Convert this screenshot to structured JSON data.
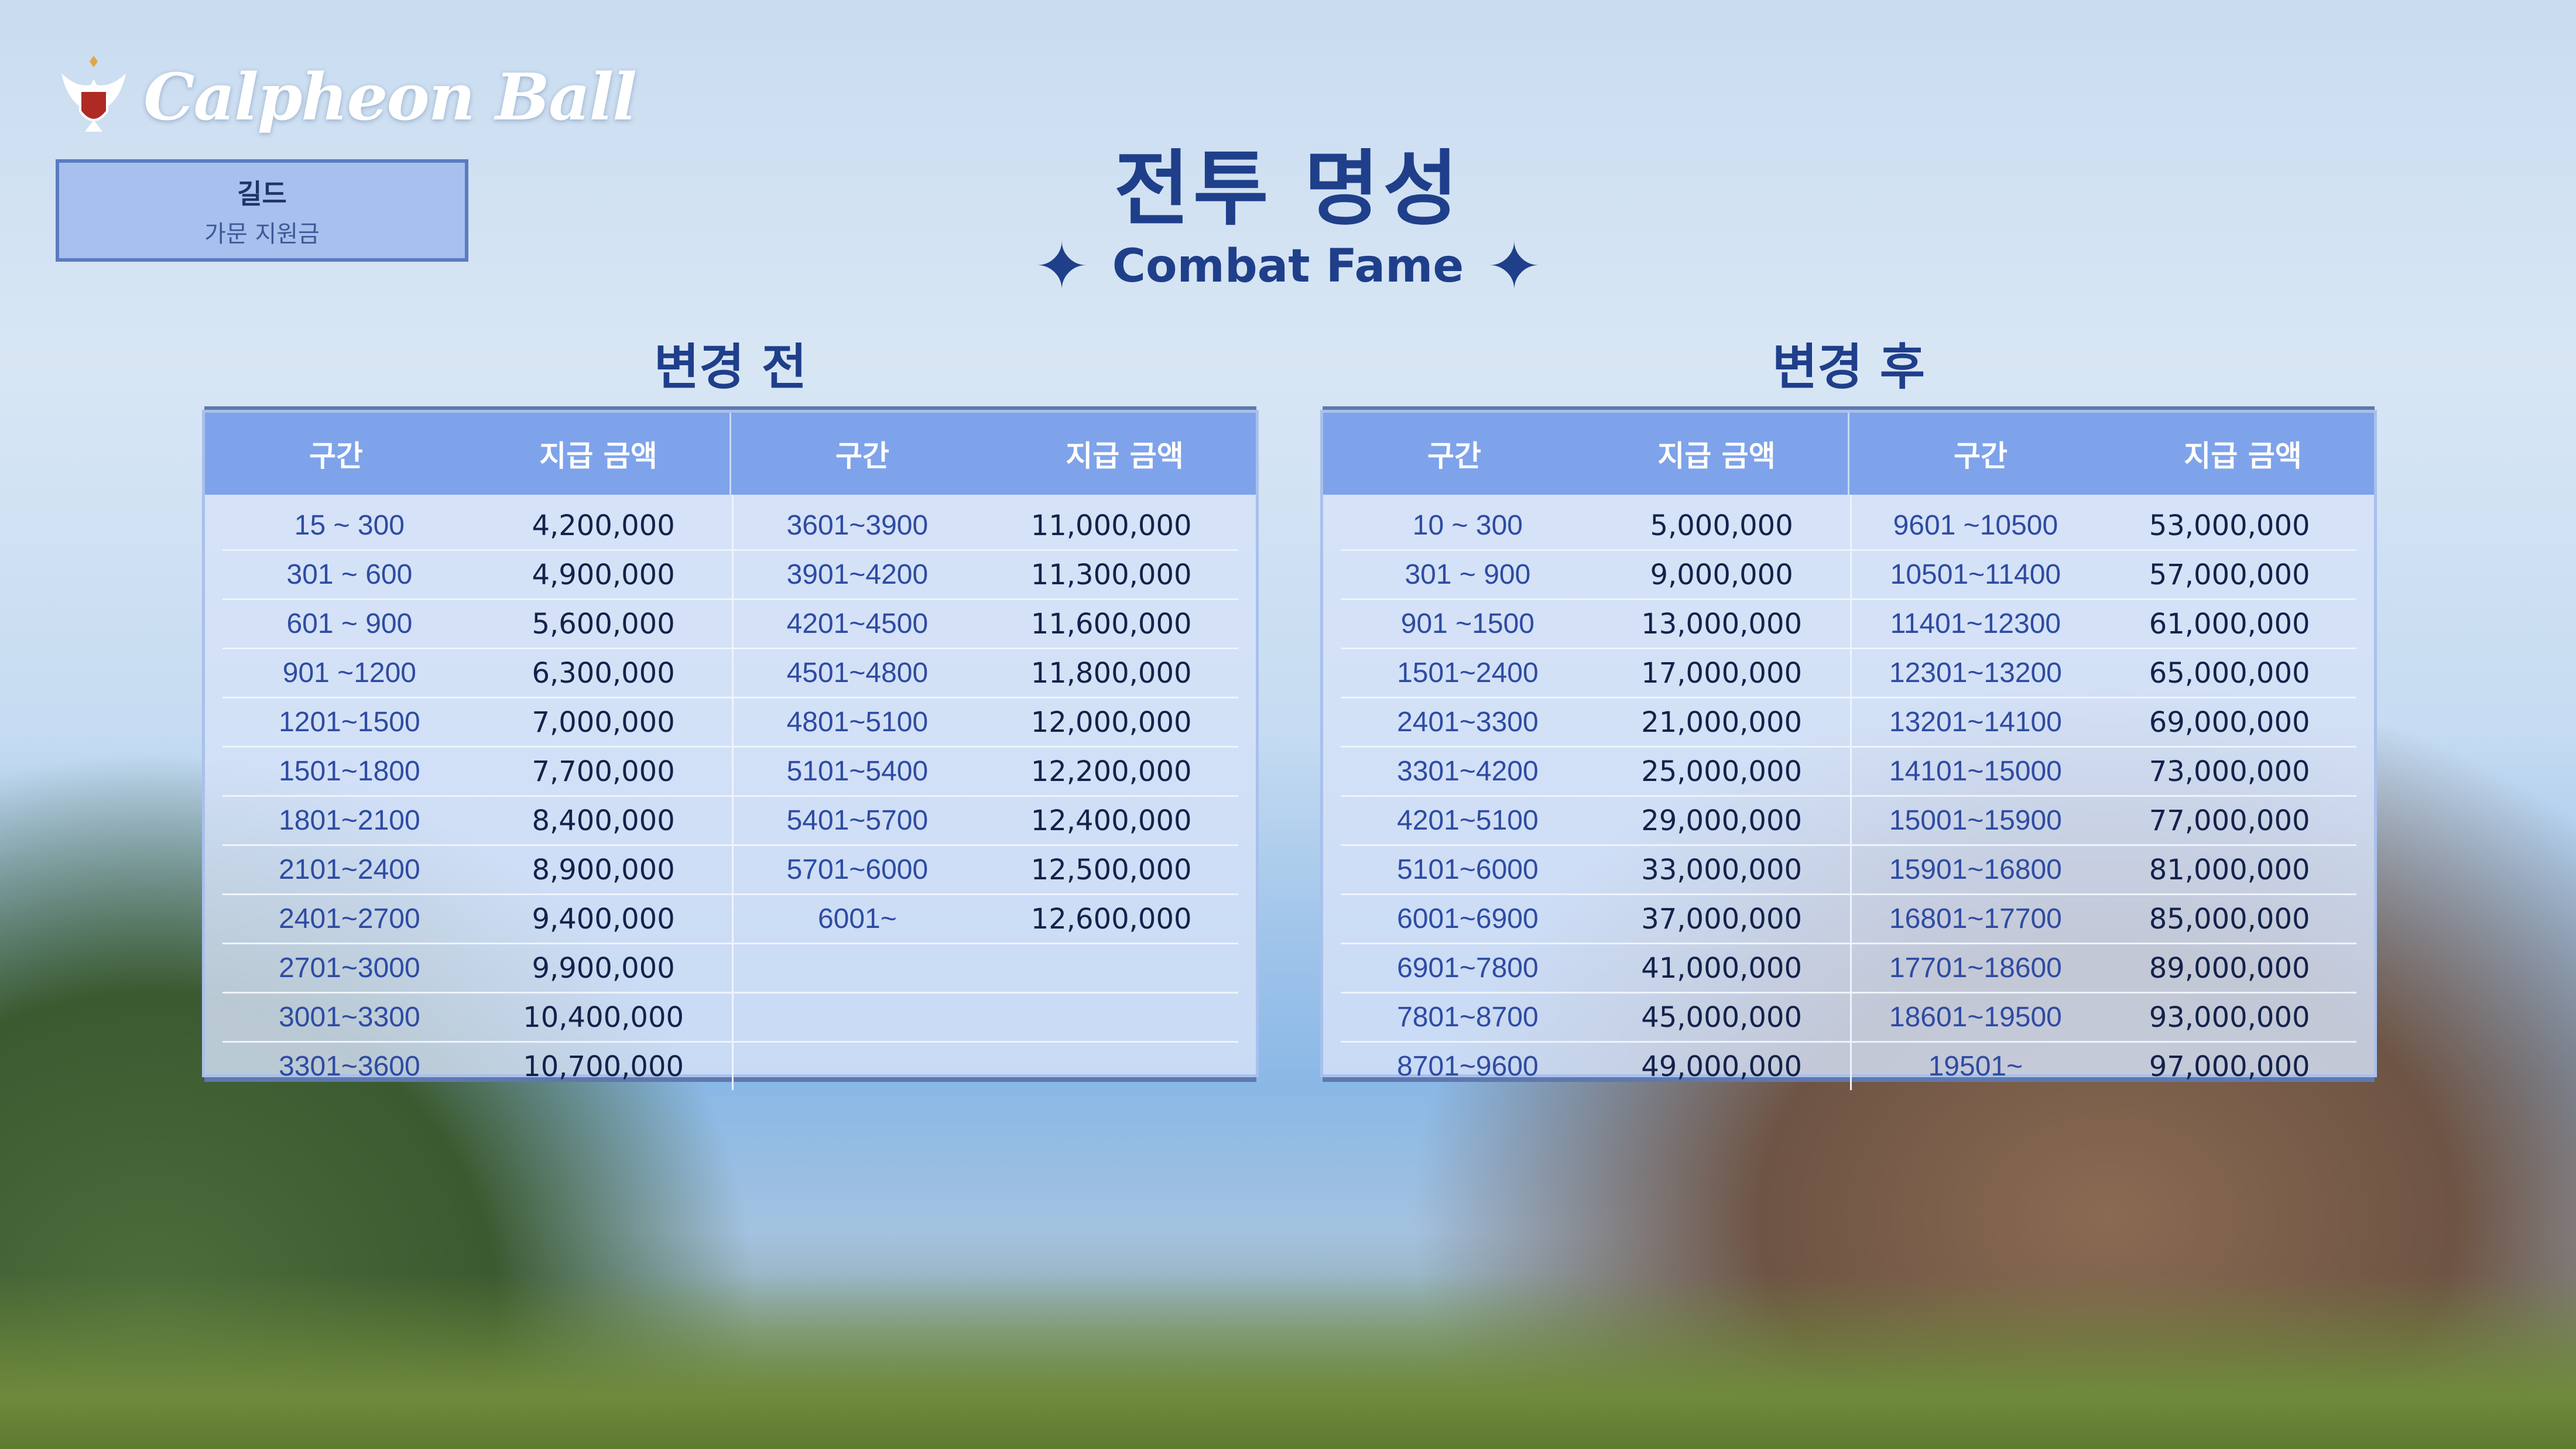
{
  "logo": {
    "text": "Calpheon Ball"
  },
  "badge": {
    "title": "길드",
    "subtitle": "가문 지원금"
  },
  "header": {
    "title": "전투 명성",
    "subtitle": "Combat Fame"
  },
  "colors": {
    "title": "#1f3f8a",
    "table_header": "#7ea3ea",
    "range_text": "#2e4ba2",
    "amount_text": "#13224a"
  },
  "tables": [
    {
      "label": "변경 전",
      "columns": [
        "구간",
        "지급 금액",
        "구간",
        "지급 금액"
      ],
      "left": [
        [
          "15  ~ 300",
          "4,200,000"
        ],
        [
          "301 ~ 600",
          "4,900,000"
        ],
        [
          "601 ~ 900",
          "5,600,000"
        ],
        [
          "901 ~1200",
          "6,300,000"
        ],
        [
          "1201~1500",
          "7,000,000"
        ],
        [
          "1501~1800",
          "7,700,000"
        ],
        [
          "1801~2100",
          "8,400,000"
        ],
        [
          "2101~2400",
          "8,900,000"
        ],
        [
          "2401~2700",
          "9,400,000"
        ],
        [
          "2701~3000",
          "9,900,000"
        ],
        [
          "3001~3300",
          "10,400,000"
        ],
        [
          "3301~3600",
          "10,700,000"
        ]
      ],
      "right": [
        [
          "3601~3900",
          "11,000,000"
        ],
        [
          "3901~4200",
          "11,300,000"
        ],
        [
          "4201~4500",
          "11,600,000"
        ],
        [
          "4501~4800",
          "11,800,000"
        ],
        [
          "4801~5100",
          "12,000,000"
        ],
        [
          "5101~5400",
          "12,200,000"
        ],
        [
          "5401~5700",
          "12,400,000"
        ],
        [
          "5701~6000",
          "12,500,000"
        ],
        [
          "6001~",
          "12,600,000"
        ],
        [
          "",
          ""
        ],
        [
          "",
          ""
        ],
        [
          "",
          ""
        ]
      ]
    },
    {
      "label": "변경 후",
      "columns": [
        "구간",
        "지급 금액",
        "구간",
        "지급 금액"
      ],
      "left": [
        [
          "10  ~ 300",
          "5,000,000"
        ],
        [
          "301 ~ 900",
          "9,000,000"
        ],
        [
          "901 ~1500",
          "13,000,000"
        ],
        [
          "1501~2400",
          "17,000,000"
        ],
        [
          "2401~3300",
          "21,000,000"
        ],
        [
          "3301~4200",
          "25,000,000"
        ],
        [
          "4201~5100",
          "29,000,000"
        ],
        [
          "5101~6000",
          "33,000,000"
        ],
        [
          "6001~6900",
          "37,000,000"
        ],
        [
          "6901~7800",
          "41,000,000"
        ],
        [
          "7801~8700",
          "45,000,000"
        ],
        [
          "8701~9600",
          "49,000,000"
        ]
      ],
      "right": [
        [
          "9601 ~10500",
          "53,000,000"
        ],
        [
          "10501~11400",
          "57,000,000"
        ],
        [
          "11401~12300",
          "61,000,000"
        ],
        [
          "12301~13200",
          "65,000,000"
        ],
        [
          "13201~14100",
          "69,000,000"
        ],
        [
          "14101~15000",
          "73,000,000"
        ],
        [
          "15001~15900",
          "77,000,000"
        ],
        [
          "15901~16800",
          "81,000,000"
        ],
        [
          "16801~17700",
          "85,000,000"
        ],
        [
          "17701~18600",
          "89,000,000"
        ],
        [
          "18601~19500",
          "93,000,000"
        ],
        [
          "19501~",
          "97,000,000"
        ]
      ]
    }
  ]
}
